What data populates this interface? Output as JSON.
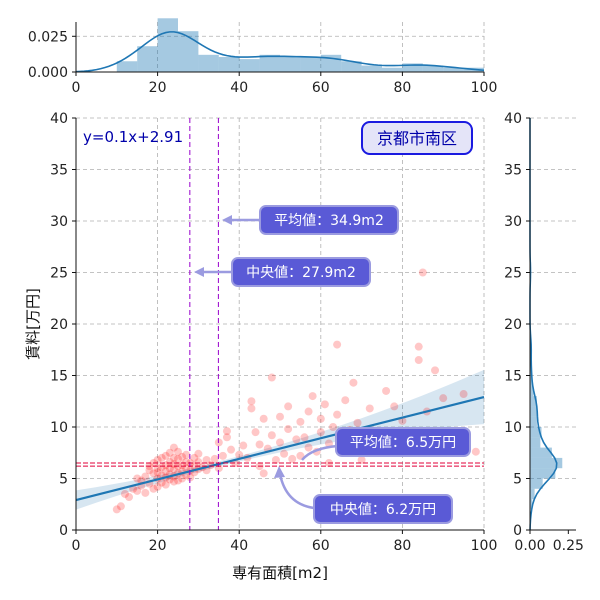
{
  "chart_data": {
    "type": "scatter",
    "title": "京都市南区",
    "equation": "y=0.1x+2.91",
    "xlabel": "専有面積[m2]",
    "ylabel": "賃料[万円]",
    "xlim": [
      0,
      100
    ],
    "ylim": [
      0,
      40
    ],
    "xticks": [
      "0",
      "20",
      "40",
      "60",
      "80",
      "100"
    ],
    "yticks": [
      "0",
      "5",
      "10",
      "15",
      "20",
      "25",
      "30",
      "35",
      "40"
    ],
    "grid": true,
    "regression": {
      "slope": 0.1,
      "intercept": 2.91
    },
    "area_mean": 34.9,
    "area_median": 27.9,
    "rent_mean": 6.5,
    "rent_median": 6.2,
    "annotations": {
      "area_mean": "平均値：34.9m2",
      "area_median": "中央値：27.9m2",
      "rent_mean": "平均値：6.5万円",
      "rent_median": "中央値：6.2万円"
    },
    "top_marginal": {
      "ylim": [
        0,
        0.035
      ],
      "yticks": [
        "0.000",
        "0.025"
      ]
    },
    "right_marginal": {
      "xlim": [
        0,
        0.3
      ],
      "xticks": [
        "0.00",
        "0.25"
      ]
    },
    "points": [
      [
        10,
        2.0
      ],
      [
        11,
        2.3
      ],
      [
        12,
        3.5
      ],
      [
        13,
        3.2
      ],
      [
        14,
        4.0
      ],
      [
        15,
        3.8
      ],
      [
        15,
        5.0
      ],
      [
        16,
        4.3
      ],
      [
        16,
        4.8
      ],
      [
        17,
        3.6
      ],
      [
        17,
        5.2
      ],
      [
        18,
        4.5
      ],
      [
        18,
        5.8
      ],
      [
        18,
        6.2
      ],
      [
        19,
        4.0
      ],
      [
        19,
        5.5
      ],
      [
        19,
        6.5
      ],
      [
        20,
        4.2
      ],
      [
        20,
        5.0
      ],
      [
        20,
        5.6
      ],
      [
        20,
        6.0
      ],
      [
        20,
        6.8
      ],
      [
        21,
        4.6
      ],
      [
        21,
        5.3
      ],
      [
        21,
        6.1
      ],
      [
        21,
        7.0
      ],
      [
        22,
        4.4
      ],
      [
        22,
        5.1
      ],
      [
        22,
        5.7
      ],
      [
        22,
        6.3
      ],
      [
        22,
        7.2
      ],
      [
        23,
        4.9
      ],
      [
        23,
        5.4
      ],
      [
        23,
        6.0
      ],
      [
        23,
        6.6
      ],
      [
        23,
        7.5
      ],
      [
        24,
        4.7
      ],
      [
        24,
        5.2
      ],
      [
        24,
        5.9
      ],
      [
        24,
        6.4
      ],
      [
        24,
        7.0
      ],
      [
        24,
        8.0
      ],
      [
        25,
        4.8
      ],
      [
        25,
        5.5
      ],
      [
        25,
        6.2
      ],
      [
        25,
        6.9
      ],
      [
        25,
        7.6
      ],
      [
        26,
        5.0
      ],
      [
        26,
        5.7
      ],
      [
        26,
        6.3
      ],
      [
        26,
        7.1
      ],
      [
        27,
        5.3
      ],
      [
        27,
        6.0
      ],
      [
        27,
        6.6
      ],
      [
        27,
        7.3
      ],
      [
        28,
        5.1
      ],
      [
        28,
        5.8
      ],
      [
        28,
        6.5
      ],
      [
        29,
        5.6
      ],
      [
        29,
        6.2
      ],
      [
        29,
        7.0
      ],
      [
        30,
        5.9
      ],
      [
        30,
        6.6
      ],
      [
        30,
        7.4
      ],
      [
        31,
        6.1
      ],
      [
        32,
        5.8
      ],
      [
        32,
        6.8
      ],
      [
        33,
        6.3
      ],
      [
        34,
        6.9
      ],
      [
        35,
        8.5
      ],
      [
        35,
        6.0
      ],
      [
        36,
        7.2
      ],
      [
        37,
        9.6
      ],
      [
        37,
        9.0
      ],
      [
        38,
        7.8
      ],
      [
        39,
        6.5
      ],
      [
        40,
        7.3
      ],
      [
        41,
        8.2
      ],
      [
        42,
        7.0
      ],
      [
        43,
        12.5
      ],
      [
        43,
        11.8
      ],
      [
        44,
        9.5
      ],
      [
        45,
        6.2
      ],
      [
        45,
        8.3
      ],
      [
        46,
        10.8
      ],
      [
        46,
        5.5
      ],
      [
        47,
        7.9
      ],
      [
        48,
        9.2
      ],
      [
        48,
        14.8
      ],
      [
        49,
        6.8
      ],
      [
        50,
        8.5
      ],
      [
        50,
        11.0
      ],
      [
        51,
        7.4
      ],
      [
        52,
        9.8
      ],
      [
        52,
        12.0
      ],
      [
        53,
        6.9
      ],
      [
        54,
        8.8
      ],
      [
        55,
        10.5
      ],
      [
        55,
        7.2
      ],
      [
        56,
        9.0
      ],
      [
        57,
        11.5
      ],
      [
        57,
        8.0
      ],
      [
        58,
        13.0
      ],
      [
        59,
        7.6
      ],
      [
        60,
        9.5
      ],
      [
        60,
        10.8
      ],
      [
        61,
        12.2
      ],
      [
        62,
        8.4
      ],
      [
        62,
        6.5
      ],
      [
        63,
        10.0
      ],
      [
        64,
        11.2
      ],
      [
        64,
        18.0
      ],
      [
        65,
        8.9
      ],
      [
        66,
        12.6
      ],
      [
        67,
        9.7
      ],
      [
        68,
        14.3
      ],
      [
        69,
        10.4
      ],
      [
        70,
        6.8
      ],
      [
        72,
        11.8
      ],
      [
        74,
        9.1
      ],
      [
        76,
        13.5
      ],
      [
        78,
        12.0
      ],
      [
        80,
        10.6
      ],
      [
        82,
        7.5
      ],
      [
        84,
        16.5
      ],
      [
        84,
        17.8
      ],
      [
        85,
        25.0
      ],
      [
        86,
        11.5
      ],
      [
        88,
        15.5
      ],
      [
        90,
        12.8
      ],
      [
        92,
        9.0
      ],
      [
        95,
        13.2
      ],
      [
        98,
        7.6
      ]
    ]
  }
}
